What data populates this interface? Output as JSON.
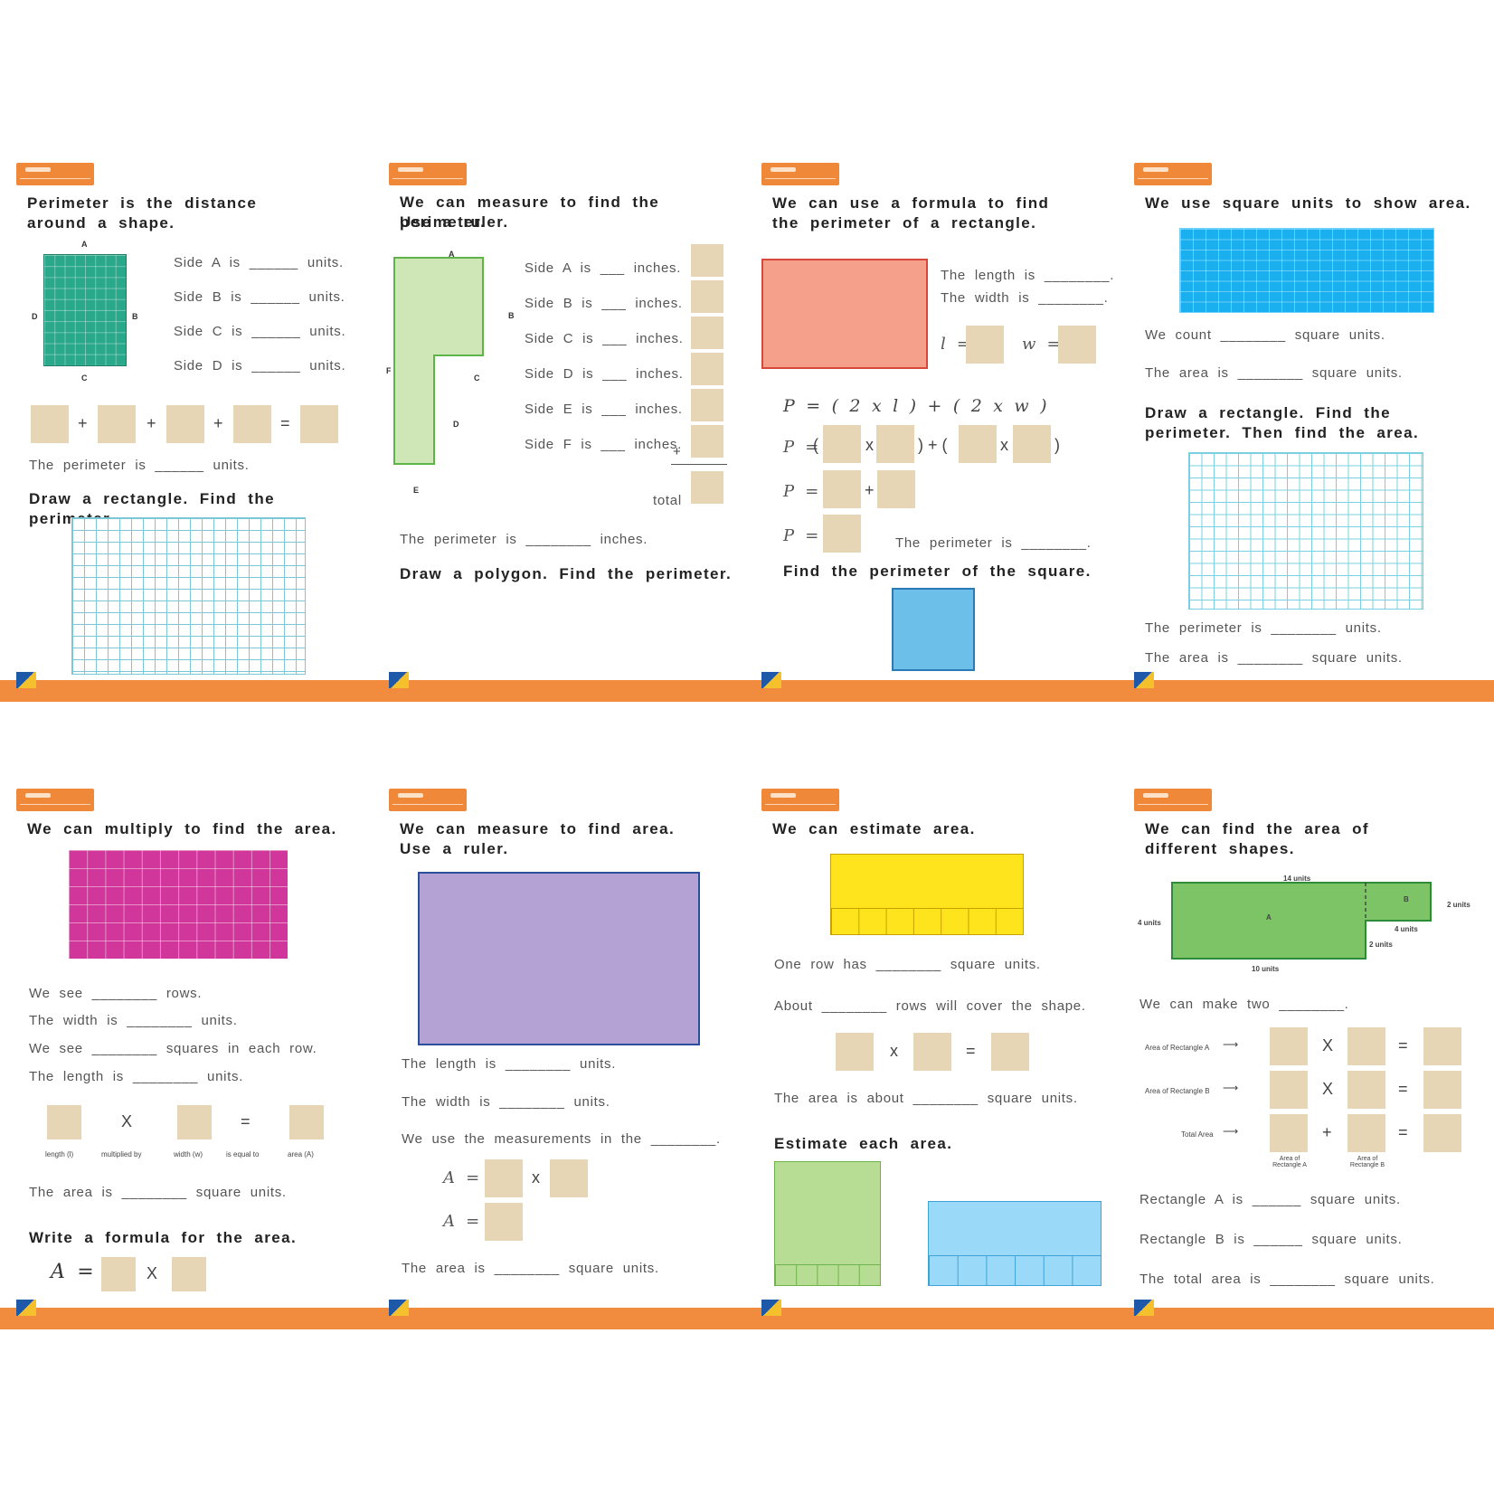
{
  "cards": [
    {
      "title": "Perimeter is the distance around a shape.",
      "sides": [
        "Side A is ______ units.",
        "Side B is ______ units.",
        "Side C is ______ units.",
        "Side D is ______ units."
      ],
      "corner_labels": [
        "A",
        "B",
        "C",
        "D"
      ],
      "perimeter_line": "The perimeter is ______ units.",
      "task": "Draw a rectangle. Find the perimeter.",
      "shape_color": "#2aa88a"
    },
    {
      "title_line1": "We can measure to find the perimeter.",
      "title_line2": "Use a ruler.",
      "sides": [
        "Side A is ___ inches.",
        "Side B is ___ inches.",
        "Side C is ___ inches.",
        "Side D is ___ inches.",
        "Side E is ___ inches.",
        "Side F is ___ inches."
      ],
      "corner_labels": [
        "A",
        "B",
        "C",
        "D",
        "E",
        "F"
      ],
      "plus": "+",
      "total_label": "total",
      "perimeter_line": "The perimeter is ________ inches.",
      "task": "Draw a polygon. Find the perimeter.",
      "shape_color": "#cfe6b6"
    },
    {
      "title": "We can use a formula to find the perimeter of a rectangle.",
      "length_line": "The length is ________.",
      "width_line": "The width is ________.",
      "l_eq": "l =",
      "w_eq": "w =",
      "formula": "P = ( 2 x l ) + ( 2 x w )",
      "p_eq": "P =",
      "ops_row1": [
        "(",
        "x",
        ") + (",
        "x",
        ")"
      ],
      "plus": "+",
      "perimeter_line": "The perimeter is ________.",
      "task": "Find the perimeter of the square.",
      "shape_color": "#f5a08a",
      "square_color": "#6bbfe8"
    },
    {
      "title": "We use square units to show area.",
      "count_line": "We count ________ square units.",
      "area_line": "The area is ________ square units.",
      "task": "Draw a rectangle. Find the perimeter. Then find the area.",
      "perimeter_line": "The perimeter is ________ units.",
      "area_line2": "The area is ________ square units.",
      "shape_color": "#1ab0f0"
    },
    {
      "title": "We can multiply to find the area.",
      "lines": [
        "We see ________ rows.",
        "The width is ________ units.",
        "We see ________ squares in each row.",
        "The length is ________ units."
      ],
      "ops": [
        "X",
        "="
      ],
      "captions": [
        "length (l)",
        "multiplied by",
        "width (w)",
        "is equal to",
        "area (A)"
      ],
      "area_line": "The area is ________ square units.",
      "task": "Write a formula for the area.",
      "a_eq": "A =",
      "x": "X",
      "shape_color": "#d1379a"
    },
    {
      "title_line1": "We can measure to find area.",
      "title_line2": "Use a ruler.",
      "length_line": "The length is ________ units.",
      "width_line": "The width is ________ units.",
      "use_line": "We use the measurements in the ________.",
      "a_eq": "A =",
      "x": "x",
      "area_line": "The area is ________ square units.",
      "shape_color": "#b3a2d3",
      "border_color": "#2b4f9c"
    },
    {
      "title": "We can estimate area.",
      "row_line": "One row has ________ square units.",
      "about_line": "About ________ rows will cover the shape.",
      "ops": [
        "x",
        "="
      ],
      "area_line": "The area is about ________ square units.",
      "task": "Estimate each area.",
      "yellow": "#fee41d",
      "green": "#b7dc93",
      "blue": "#9ad9f7"
    },
    {
      "title_line1": "We can find the area of",
      "title_line2": "different shapes.",
      "dims": [
        "14 units",
        "2 units",
        "4 units",
        "4 units",
        "2 units",
        "10 units"
      ],
      "regions": [
        "A",
        "B"
      ],
      "make_line": "We can make two ________.",
      "rows": [
        "Area of Rectangle A",
        "Area of Rectangle B",
        "Total Area"
      ],
      "ops": [
        "X",
        "X",
        "+",
        "=",
        "=",
        "="
      ],
      "col_captions": [
        "Area of Rectangle A",
        "Area of Rectangle B"
      ],
      "rect_a_line": "Rectangle A is ______ square units.",
      "rect_b_line": "Rectangle B is ______ square units.",
      "total_line": "The total area is ________ square units.",
      "shape_color": "#7dc466"
    }
  ]
}
